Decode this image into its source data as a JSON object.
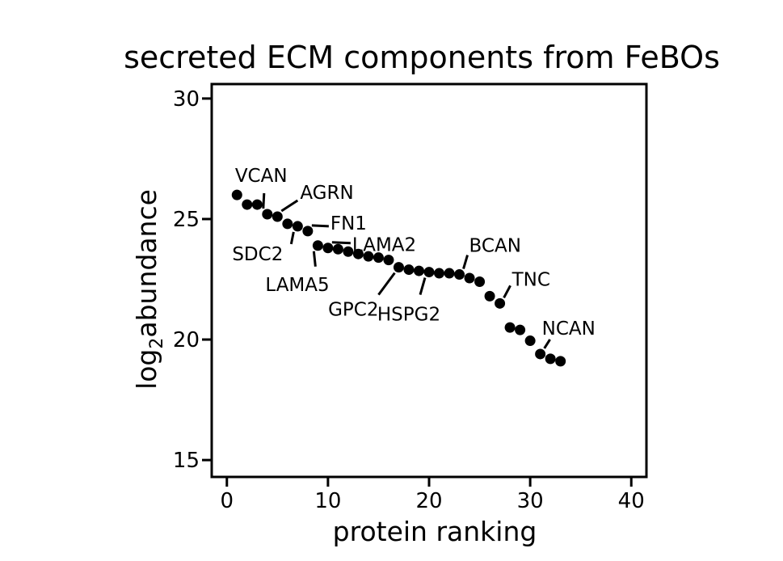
{
  "chart_data": {
    "type": "scatter",
    "title": "secreted ECM components from FeBOs",
    "xlabel": "protein ranking",
    "ylabel_main": "log",
    "ylabel_sub": "2",
    "ylabel_rest": "abundance",
    "xlim": [
      -1.5,
      41.5
    ],
    "ylim": [
      14.3,
      30.6
    ],
    "xticks": [
      0,
      10,
      20,
      30,
      40
    ],
    "yticks": [
      15,
      20,
      25,
      30
    ],
    "grid": false,
    "legend": "none",
    "x": [
      1,
      2,
      3,
      4,
      5,
      6,
      7,
      8,
      9,
      10,
      11,
      12,
      13,
      14,
      15,
      16,
      17,
      18,
      19,
      20,
      21,
      22,
      23,
      24,
      25,
      26,
      27,
      28,
      29,
      30,
      31,
      32,
      33
    ],
    "y": [
      26.0,
      25.6,
      25.6,
      25.2,
      25.1,
      24.8,
      24.7,
      24.5,
      23.9,
      23.8,
      23.75,
      23.65,
      23.55,
      23.45,
      23.4,
      23.3,
      23.0,
      22.9,
      22.85,
      22.8,
      22.75,
      22.75,
      22.7,
      22.55,
      22.4,
      21.8,
      21.5,
      20.5,
      20.4,
      19.95,
      19.4,
      19.2,
      19.1
    ],
    "annotations": [
      {
        "label": "VCAN",
        "point_x": 4,
        "point_y": 25.2
      },
      {
        "label": "AGRN",
        "point_x": 5,
        "point_y": 25.1
      },
      {
        "label": "FN1",
        "point_x": 8,
        "point_y": 24.5
      },
      {
        "label": "SDC2",
        "point_x": 7,
        "point_y": 24.7
      },
      {
        "label": "LAMA2",
        "point_x": 10,
        "point_y": 23.8
      },
      {
        "label": "LAMA5",
        "point_x": 9,
        "point_y": 23.9
      },
      {
        "label": "BCAN",
        "point_x": 23,
        "point_y": 22.7
      },
      {
        "label": "GPC2",
        "point_x": 17,
        "point_y": 23.0
      },
      {
        "label": "HSPG2",
        "point_x": 20,
        "point_y": 22.8
      },
      {
        "label": "TNC",
        "point_x": 27,
        "point_y": 21.5
      },
      {
        "label": "NCAN",
        "point_x": 31,
        "point_y": 19.4
      }
    ],
    "colors": {
      "points": "#000000",
      "axes": "#000000"
    }
  }
}
